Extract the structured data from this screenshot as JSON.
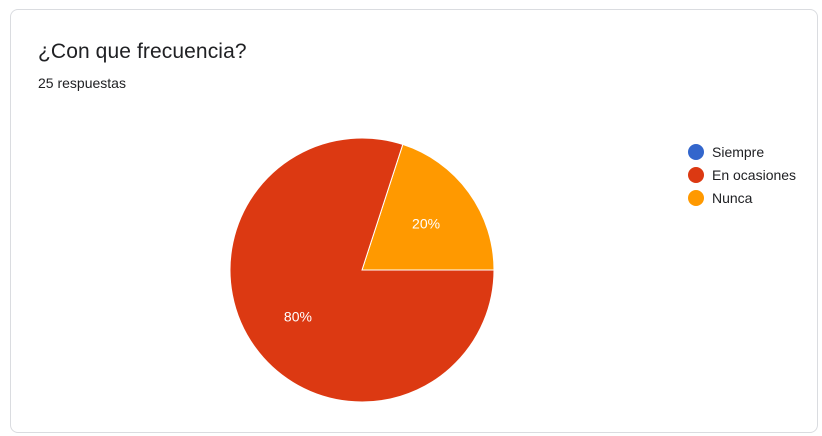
{
  "header": {
    "title": "¿Con que frecuencia?",
    "subtitle": "25 respuestas"
  },
  "chart_data": {
    "type": "pie",
    "title": "¿Con que frecuencia?",
    "categories": [
      "Siempre",
      "En ocasiones",
      "Nunca"
    ],
    "values": [
      0,
      80,
      20
    ],
    "value_labels": [
      "",
      "80%",
      "20%"
    ],
    "colors": [
      "#3366cc",
      "#dc3912",
      "#ff9900"
    ],
    "legend": "right",
    "start_angle_deg": 90,
    "direction": "counterclockwise"
  },
  "legend": {
    "items": [
      {
        "label": "Siempre",
        "color": "#3366cc"
      },
      {
        "label": "En ocasiones",
        "color": "#dc3912"
      },
      {
        "label": "Nunca",
        "color": "#ff9900"
      }
    ]
  }
}
